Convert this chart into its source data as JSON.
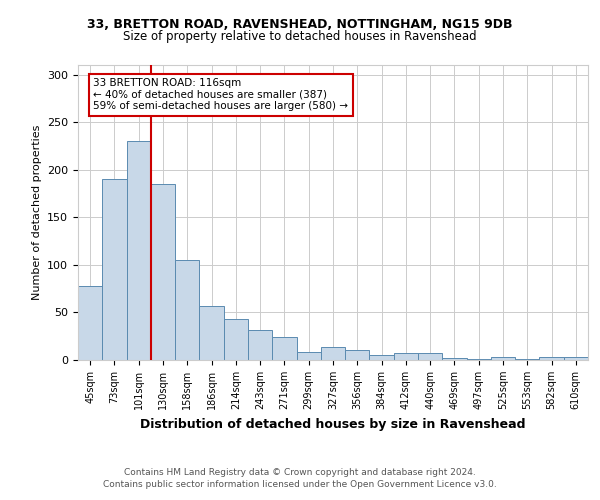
{
  "title1": "33, BRETTON ROAD, RAVENSHEAD, NOTTINGHAM, NG15 9DB",
  "title2": "Size of property relative to detached houses in Ravenshead",
  "xlabel": "Distribution of detached houses by size in Ravenshead",
  "ylabel": "Number of detached properties",
  "footnote1": "Contains HM Land Registry data © Crown copyright and database right 2024.",
  "footnote2": "Contains public sector information licensed under the Open Government Licence v3.0.",
  "annotation_line1": "33 BRETTON ROAD: 116sqm",
  "annotation_line2": "← 40% of detached houses are smaller (387)",
  "annotation_line3": "59% of semi-detached houses are larger (580) →",
  "categories": [
    "45sqm",
    "73sqm",
    "101sqm",
    "130sqm",
    "158sqm",
    "186sqm",
    "214sqm",
    "243sqm",
    "271sqm",
    "299sqm",
    "327sqm",
    "356sqm",
    "384sqm",
    "412sqm",
    "440sqm",
    "469sqm",
    "497sqm",
    "525sqm",
    "553sqm",
    "582sqm",
    "610sqm"
  ],
  "values": [
    78,
    190,
    230,
    185,
    105,
    57,
    43,
    32,
    24,
    8,
    14,
    11,
    5,
    7,
    7,
    2,
    1,
    3,
    1,
    3,
    3
  ],
  "bar_color": "#c8d8e8",
  "bar_edge_color": "#5a8ab0",
  "vline_x": 2.5,
  "vline_color": "#cc0000",
  "annotation_box_color": "#ffffff",
  "annotation_box_edge": "#cc0000",
  "background_color": "#ffffff",
  "grid_color": "#cccccc",
  "ylim": [
    0,
    310
  ],
  "yticks": [
    0,
    50,
    100,
    150,
    200,
    250,
    300
  ]
}
